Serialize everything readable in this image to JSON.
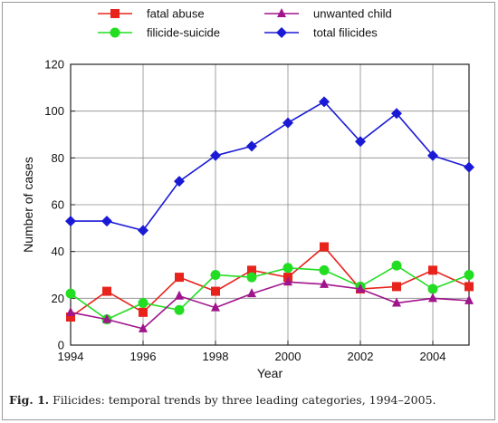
{
  "chart_data": {
    "type": "line",
    "xlabel": "Year",
    "ylabel": "Number of cases",
    "xlim": [
      1994,
      2005
    ],
    "ylim": [
      0,
      120
    ],
    "x_ticks": [
      1994,
      1996,
      1998,
      2000,
      2002,
      2004
    ],
    "y_ticks": [
      0,
      20,
      40,
      60,
      80,
      100,
      120
    ],
    "grid": true,
    "legend_position": "top",
    "x": [
      1994,
      1995,
      1996,
      1997,
      1998,
      1999,
      2000,
      2001,
      2002,
      2003,
      2004,
      2005
    ],
    "series": [
      {
        "name": "fatal abuse",
        "color": "#e8231c",
        "marker": "square",
        "values": [
          12,
          23,
          14,
          29,
          23,
          32,
          29,
          42,
          24,
          25,
          32,
          25
        ]
      },
      {
        "name": "filicide-suicide",
        "color": "#22dd22",
        "marker": "circle",
        "values": [
          22,
          11,
          18,
          15,
          30,
          29,
          33,
          32,
          25,
          34,
          24,
          30
        ]
      },
      {
        "name": "unwanted child",
        "color": "#a0148c",
        "marker": "triangle",
        "values": [
          14,
          11,
          7,
          21,
          16,
          22,
          27,
          26,
          24,
          18,
          20,
          19
        ]
      },
      {
        "name": "total filicides",
        "color": "#1a1ad6",
        "marker": "diamond",
        "values": [
          53,
          53,
          49,
          70,
          81,
          85,
          95,
          104,
          87,
          99,
          81,
          76
        ]
      }
    ]
  },
  "caption": {
    "label": "Fig. 1.",
    "text": "Filicides: temporal trends by three leading categories, 1994–2005."
  }
}
